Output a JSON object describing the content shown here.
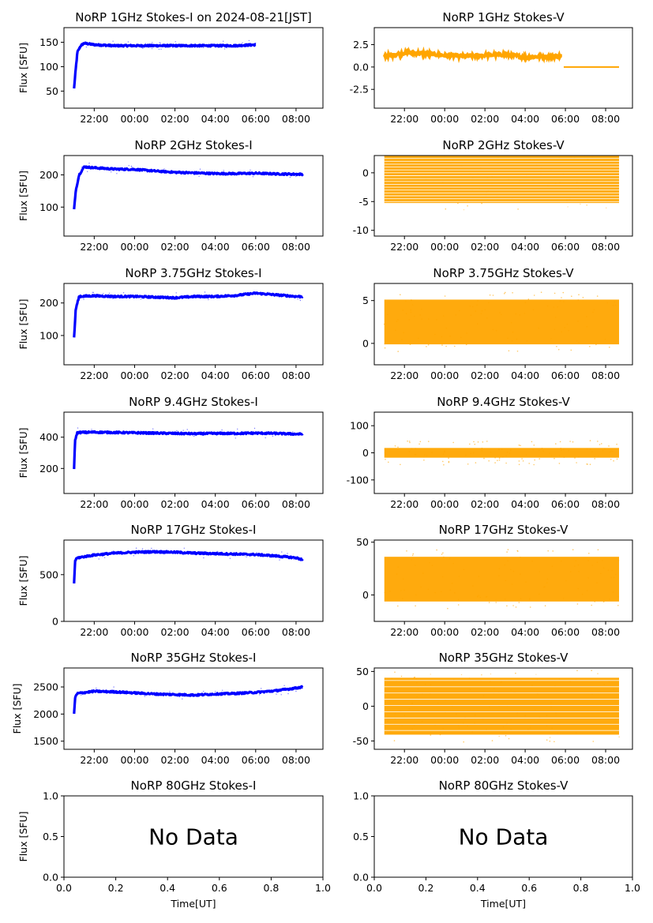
{
  "chart_data": [
    {
      "type": "scatter",
      "title": "NoRP 1GHz Stokes-I on 2024-08-21[JST]",
      "ylabel": "Flux [SFU]",
      "xlabel": "",
      "xlim": [
        "20:30",
        "09:20"
      ],
      "ylim": [
        15,
        180
      ],
      "yticks": [
        "50",
        "100",
        "150"
      ],
      "xticks": [
        "22:00",
        "00:00",
        "02:00",
        "04:00",
        "06:00",
        "08:00"
      ],
      "color": "#0000ff",
      "data_end": "06:00",
      "series": [
        {
          "x": [
            "21:00",
            "21:05",
            "21:10",
            "21:20",
            "21:30",
            "22:00",
            "23:00",
            "00:00",
            "01:00",
            "02:00",
            "03:00",
            "04:00",
            "05:00",
            "06:00"
          ],
          "y": [
            55,
            95,
            130,
            143,
            148,
            145,
            143,
            143,
            143,
            143,
            143,
            143,
            143,
            145
          ]
        }
      ]
    },
    {
      "type": "scatter",
      "title": "NoRP 1GHz Stokes-V",
      "ylabel": "",
      "xlabel": "",
      "xlim": [
        "20:30",
        "09:20"
      ],
      "ylim": [
        -4.6,
        4.4
      ],
      "yticks": [
        "2.5",
        "0.0",
        "-2.5"
      ],
      "xticks": [
        "22:00",
        "00:00",
        "02:00",
        "04:00",
        "06:00",
        "08:00"
      ],
      "color": "#ffa500",
      "data_end": "08:40",
      "series": [
        {
          "x": [
            "21:00",
            "22:00",
            "23:00",
            "00:00",
            "01:00",
            "02:00",
            "03:00",
            "04:00",
            "05:00",
            "05:50",
            "06:00",
            "07:00",
            "08:00",
            "08:40"
          ],
          "y": [
            1.2,
            1.6,
            1.5,
            1.3,
            1.2,
            1.3,
            1.4,
            1.1,
            1.2,
            1.2,
            0.0,
            0.0,
            0.0,
            0.0
          ]
        }
      ]
    },
    {
      "type": "scatter",
      "title": "NoRP 2GHz Stokes-I",
      "ylabel": "Flux [SFU]",
      "xlabel": "",
      "xlim": [
        "20:30",
        "09:20"
      ],
      "ylim": [
        10,
        260
      ],
      "yticks": [
        "100",
        "200"
      ],
      "xticks": [
        "22:00",
        "00:00",
        "02:00",
        "04:00",
        "06:00",
        "08:00"
      ],
      "color": "#0000ff",
      "data_end": "08:20",
      "series": [
        {
          "x": [
            "21:00",
            "21:05",
            "21:15",
            "21:30",
            "22:00",
            "23:00",
            "00:00",
            "01:00",
            "02:00",
            "03:00",
            "04:00",
            "05:00",
            "06:00",
            "07:00",
            "08:00",
            "08:20"
          ],
          "y": [
            92,
            150,
            200,
            225,
            222,
            218,
            217,
            212,
            208,
            206,
            204,
            204,
            205,
            203,
            202,
            202
          ]
        }
      ]
    },
    {
      "type": "scatter",
      "title": "NoRP 2GHz Stokes-V",
      "ylabel": "",
      "xlabel": "",
      "xlim": [
        "20:30",
        "09:20"
      ],
      "ylim": [
        -11,
        3
      ],
      "yticks": [
        "0",
        "-5",
        "-10"
      ],
      "xticks": [
        "22:00",
        "00:00",
        "02:00",
        "04:00",
        "06:00",
        "08:00"
      ],
      "color": "#ffa500",
      "data_end": "08:40",
      "series": [
        {
          "x": [
            "21:00",
            "08:40"
          ],
          "y": [
            0,
            0
          ]
        }
      ]
    },
    {
      "type": "scatter",
      "title": "NoRP 3.75GHz Stokes-I",
      "ylabel": "Flux [SFU]",
      "xlabel": "",
      "xlim": [
        "20:30",
        "09:20"
      ],
      "ylim": [
        10,
        260
      ],
      "yticks": [
        "100",
        "200"
      ],
      "xticks": [
        "22:00",
        "00:00",
        "02:00",
        "04:00",
        "06:00",
        "08:00"
      ],
      "color": "#0000ff",
      "data_end": "08:20",
      "series": [
        {
          "x": [
            "21:00",
            "21:05",
            "21:15",
            "22:00",
            "23:00",
            "00:00",
            "01:00",
            "02:00",
            "03:00",
            "04:00",
            "05:00",
            "06:00",
            "07:00",
            "08:00",
            "08:20"
          ],
          "y": [
            92,
            180,
            220,
            222,
            220,
            220,
            218,
            216,
            220,
            220,
            223,
            230,
            225,
            220,
            220
          ]
        }
      ]
    },
    {
      "type": "scatter",
      "title": "NoRP 3.75GHz Stokes-V",
      "ylabel": "",
      "xlabel": "",
      "xlim": [
        "20:30",
        "09:20"
      ],
      "ylim": [
        -2.5,
        7
      ],
      "yticks": [
        "5",
        "0"
      ],
      "xticks": [
        "22:00",
        "00:00",
        "02:00",
        "04:00",
        "06:00",
        "08:00"
      ],
      "color": "#ffa500",
      "data_end": "08:40",
      "series": [
        {
          "x": [
            "21:00",
            "08:40"
          ],
          "y": [
            2.5,
            2.5
          ]
        }
      ]
    },
    {
      "type": "scatter",
      "title": "NoRP 9.4GHz Stokes-I",
      "ylabel": "Flux [SFU]",
      "xlabel": "",
      "xlim": [
        "20:30",
        "09:20"
      ],
      "ylim": [
        40,
        560
      ],
      "yticks": [
        "200",
        "400"
      ],
      "xticks": [
        "22:00",
        "00:00",
        "02:00",
        "04:00",
        "06:00",
        "08:00"
      ],
      "color": "#0000ff",
      "data_end": "08:20",
      "series": [
        {
          "x": [
            "21:00",
            "21:03",
            "21:10",
            "22:00",
            "23:00",
            "00:00",
            "01:00",
            "02:00",
            "03:00",
            "04:00",
            "05:00",
            "06:00",
            "07:00",
            "08:00",
            "08:20"
          ],
          "y": [
            200,
            380,
            430,
            432,
            430,
            428,
            426,
            424,
            422,
            424,
            424,
            426,
            424,
            420,
            420
          ]
        }
      ]
    },
    {
      "type": "scatter",
      "title": "NoRP 9.4GHz Stokes-V",
      "ylabel": "",
      "xlabel": "",
      "xlim": [
        "20:30",
        "09:20"
      ],
      "ylim": [
        -150,
        150
      ],
      "yticks": [
        "100",
        "0",
        "-100"
      ],
      "xticks": [
        "22:00",
        "00:00",
        "02:00",
        "04:00",
        "06:00",
        "08:00"
      ],
      "color": "#ffa500",
      "data_end": "08:40",
      "series": [
        {
          "x": [
            "21:00",
            "08:40"
          ],
          "y": [
            0,
            0
          ]
        }
      ]
    },
    {
      "type": "scatter",
      "title": "NoRP 17GHz Stokes-I",
      "ylabel": "Flux [SFU]",
      "xlabel": "",
      "xlim": [
        "20:30",
        "09:20"
      ],
      "ylim": [
        0,
        870
      ],
      "yticks": [
        "500",
        "0"
      ],
      "xticks": [
        "22:00",
        "00:00",
        "02:00",
        "04:00",
        "06:00",
        "08:00"
      ],
      "color": "#0000ff",
      "data_end": "08:20",
      "series": [
        {
          "x": [
            "21:00",
            "21:03",
            "21:10",
            "22:00",
            "23:00",
            "00:00",
            "01:00",
            "02:00",
            "03:00",
            "04:00",
            "05:00",
            "06:00",
            "07:00",
            "08:00",
            "08:20"
          ],
          "y": [
            400,
            650,
            680,
            710,
            730,
            740,
            745,
            740,
            730,
            725,
            720,
            715,
            700,
            680,
            660
          ]
        }
      ]
    },
    {
      "type": "scatter",
      "title": "NoRP 17GHz Stokes-V",
      "ylabel": "",
      "xlabel": "",
      "xlim": [
        "20:30",
        "09:20"
      ],
      "ylim": [
        -25,
        52
      ],
      "yticks": [
        "50",
        "0"
      ],
      "xticks": [
        "22:00",
        "00:00",
        "02:00",
        "04:00",
        "06:00",
        "08:00"
      ],
      "color": "#ffa500",
      "data_end": "08:40",
      "series": [
        {
          "x": [
            "21:00",
            "08:40"
          ],
          "y": [
            15,
            15
          ]
        }
      ]
    },
    {
      "type": "scatter",
      "title": "NoRP 35GHz Stokes-I",
      "ylabel": "Flux [SFU]",
      "xlabel": "",
      "xlim": [
        "20:30",
        "09:20"
      ],
      "ylim": [
        1350,
        2850
      ],
      "yticks": [
        "2500",
        "2000",
        "1500"
      ],
      "xticks": [
        "22:00",
        "00:00",
        "02:00",
        "04:00",
        "06:00",
        "08:00"
      ],
      "color": "#0000ff",
      "data_end": "08:20",
      "series": [
        {
          "x": [
            "21:00",
            "21:03",
            "21:10",
            "22:00",
            "23:00",
            "00:00",
            "01:00",
            "02:00",
            "03:00",
            "04:00",
            "05:00",
            "06:00",
            "07:00",
            "08:00",
            "08:20"
          ],
          "y": [
            2000,
            2300,
            2380,
            2420,
            2410,
            2390,
            2370,
            2360,
            2350,
            2370,
            2380,
            2400,
            2430,
            2480,
            2500
          ]
        }
      ]
    },
    {
      "type": "scatter",
      "title": "NoRP 35GHz Stokes-V",
      "ylabel": "",
      "xlabel": "",
      "xlim": [
        "20:30",
        "09:20"
      ],
      "ylim": [
        -62,
        55
      ],
      "yticks": [
        "50",
        "0",
        "-50"
      ],
      "xticks": [
        "22:00",
        "00:00",
        "02:00",
        "04:00",
        "06:00",
        "08:00"
      ],
      "color": "#ffa500",
      "data_end": "08:40",
      "series": [
        {
          "x": [
            "21:00",
            "08:40"
          ],
          "y": [
            0,
            0
          ]
        }
      ]
    },
    {
      "type": "scatter",
      "title": "NoRP 80GHz Stokes-I",
      "ylabel": "Flux [SFU]",
      "xlabel": "Time[UT]",
      "xlim": [
        0,
        1
      ],
      "ylim": [
        0,
        1
      ],
      "yticks": [
        "1.0",
        "0.5",
        "0.0"
      ],
      "xticks": [
        "0.0",
        "0.2",
        "0.4",
        "0.6",
        "0.8",
        "1.0"
      ],
      "annotation": "No Data",
      "series": []
    },
    {
      "type": "scatter",
      "title": "NoRP 80GHz Stokes-V",
      "ylabel": "",
      "xlabel": "Time[UT]",
      "xlim": [
        0,
        1
      ],
      "ylim": [
        0,
        1
      ],
      "yticks": [
        "1.0",
        "0.5",
        "0.0"
      ],
      "xticks": [
        "0.0",
        "0.2",
        "0.4",
        "0.6",
        "0.8",
        "1.0"
      ],
      "annotation": "No Data",
      "series": []
    }
  ]
}
